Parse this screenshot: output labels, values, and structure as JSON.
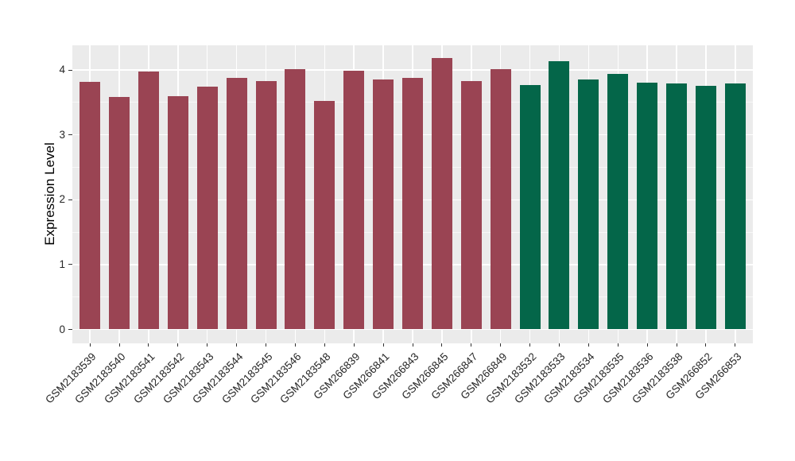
{
  "chart_data": {
    "type": "bar",
    "title": "",
    "xlabel": "",
    "ylabel": "Expression Level",
    "categories": [
      "GSM2183539",
      "GSM2183540",
      "GSM2183541",
      "GSM2183542",
      "GSM2183543",
      "GSM2183544",
      "GSM2183545",
      "GSM2183546",
      "GSM2183548",
      "GSM266839",
      "GSM266841",
      "GSM266843",
      "GSM266845",
      "GSM266847",
      "GSM266849",
      "GSM2183532",
      "GSM2183533",
      "GSM2183534",
      "GSM2183535",
      "GSM2183536",
      "GSM2183538",
      "GSM266852",
      "GSM266853"
    ],
    "values": [
      3.82,
      3.58,
      3.98,
      3.6,
      3.74,
      3.88,
      3.83,
      4.01,
      3.52,
      3.99,
      3.85,
      3.88,
      4.18,
      3.83,
      4.01,
      3.77,
      4.14,
      3.85,
      3.94,
      3.8,
      3.79,
      3.76,
      3.79
    ],
    "bar_colors": [
      "#9A4453",
      "#9A4453",
      "#9A4453",
      "#9A4453",
      "#9A4453",
      "#9A4453",
      "#9A4453",
      "#9A4453",
      "#9A4453",
      "#9A4453",
      "#9A4453",
      "#9A4453",
      "#9A4453",
      "#9A4453",
      "#9A4453",
      "#046649",
      "#046649",
      "#046649",
      "#046649",
      "#046649",
      "#046649",
      "#046649",
      "#046649"
    ],
    "group_colors": {
      "maroon": "#9A4453",
      "green": "#046649"
    },
    "y_ticks": [
      0,
      1,
      2,
      3,
      4
    ],
    "y_minor_ticks": [
      0.5,
      1.5,
      2.5,
      3.5
    ],
    "ylim": [
      -0.21,
      4.38
    ],
    "grid": true,
    "legend": "none",
    "panel_bg": "#EBEBEB",
    "grid_major_color": "#FFFFFF",
    "grid_minor_color": "#FFFFFF",
    "tick_color": "#333333"
  }
}
